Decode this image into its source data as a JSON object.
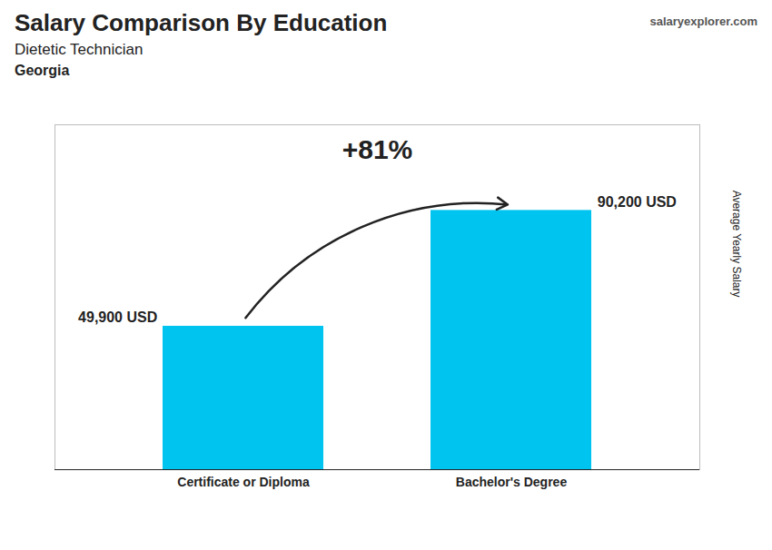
{
  "chart_data": {
    "type": "bar",
    "title": "Salary Comparison By Education",
    "subtitle": "Dietetic Technician",
    "annotations": [
      "Georgia",
      "salaryexplorer.com",
      "+81%"
    ],
    "ylabel": "Average Yearly Salary",
    "categories": [
      "Certificate or Diploma",
      "Bachelor's Degree"
    ],
    "values": [
      49900,
      90200
    ],
    "value_labels": [
      "49,900 USD",
      "90,200 USD"
    ],
    "data_labels": true,
    "color": "#00C4F0",
    "ylim": [
      0,
      120000
    ],
    "tick_labels": "x",
    "grid": false
  }
}
